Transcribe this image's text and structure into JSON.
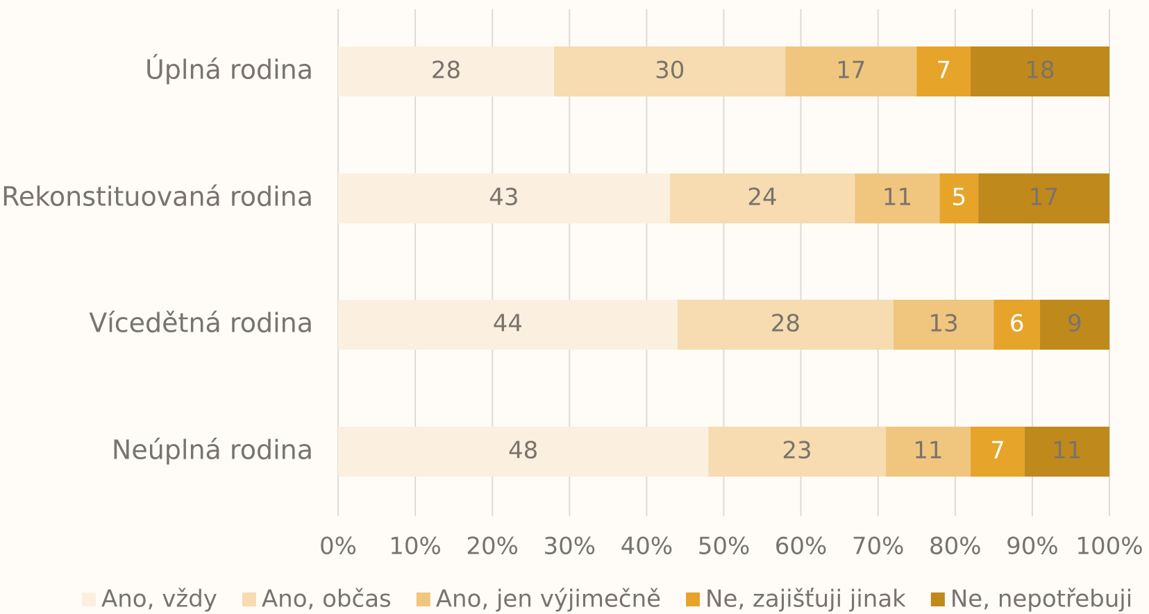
{
  "chart_data": {
    "type": "bar",
    "orientation": "horizontal",
    "stacked": true,
    "categories": [
      "Úplná rodina",
      "Rekonstituovaná rodina",
      "Vícedětná rodina",
      "Neúplná rodina"
    ],
    "series": [
      {
        "name": "Ano, vždy",
        "color": "#fbf0df",
        "values": [
          28,
          43,
          44,
          48
        ]
      },
      {
        "name": "Ano, občas",
        "color": "#f6dcb0",
        "values": [
          30,
          24,
          28,
          23
        ]
      },
      {
        "name": "Ano, jen výjimečně",
        "color": "#f0c67e",
        "values": [
          17,
          11,
          13,
          11
        ]
      },
      {
        "name": "Ne, zajišťuji jinak",
        "color": "#e6a42a",
        "values": [
          7,
          5,
          6,
          7
        ]
      },
      {
        "name": "Ne, nepotřebuji",
        "color": "#c0891c",
        "values": [
          18,
          17,
          9,
          11
        ]
      }
    ],
    "xlim": [
      0,
      100
    ],
    "xticks": [
      {
        "value": 0,
        "label": "0%"
      },
      {
        "value": 10,
        "label": "10%"
      },
      {
        "value": 20,
        "label": "20%"
      },
      {
        "value": 30,
        "label": "30%"
      },
      {
        "value": 40,
        "label": "40%"
      },
      {
        "value": 50,
        "label": "50%"
      },
      {
        "value": 60,
        "label": "60%"
      },
      {
        "value": 70,
        "label": "70%"
      },
      {
        "value": 80,
        "label": "80%"
      },
      {
        "value": 90,
        "label": "90%"
      },
      {
        "value": 100,
        "label": "100%"
      }
    ],
    "grid": true,
    "legend": "bottom"
  }
}
